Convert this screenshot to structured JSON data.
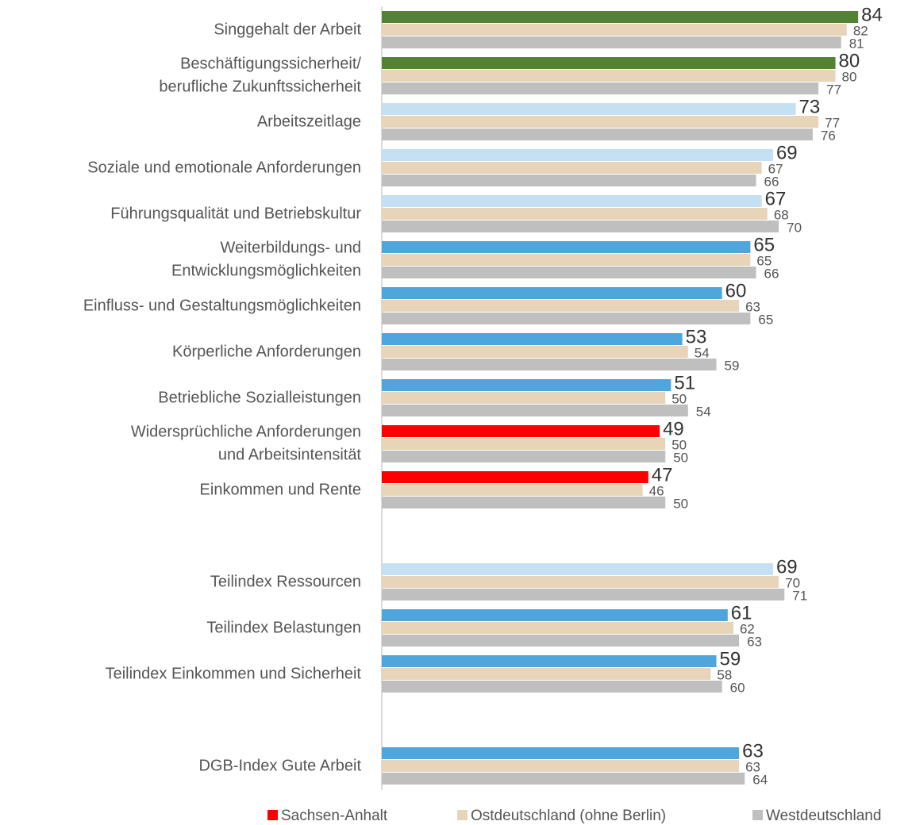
{
  "chart_data": {
    "type": "hbar",
    "categories": [
      "Singgehalt der Arbeit",
      "Beschäftigungssicherheit/\nberufliche Zukunftssicherheit",
      "Arbeitszeitlage",
      "Soziale und emotionale Anforderungen",
      "Führungsqualität und Betriebskultur",
      "Weiterbildungs- und\nEntwicklungsmöglichkeiten",
      "Einfluss- und Gestaltungsmöglichkeiten",
      "Körperliche Anforderungen",
      "Betriebliche Sozialleistungen",
      "Widersprüchliche Anforderungen\nund Arbeitsintensität",
      "Einkommen und Rente",
      null,
      "Teilindex Ressourcen",
      "Teilindex Belastungen",
      "Teilindex Einkommen und Sicherheit",
      null,
      "DGB-Index Gute Arbeit"
    ],
    "series": [
      {
        "name": "Sachsen-Anhalt",
        "color": "#ff0000",
        "colors": [
          "#548235",
          "#548235",
          "#c5e0f3",
          "#c5e0f3",
          "#c5e0f3",
          "#4ea6dc",
          "#4ea6dc",
          "#4ea6dc",
          "#4ea6dc",
          "#ff0000",
          "#ff0000",
          null,
          "#c5e0f3",
          "#4ea6dc",
          "#4ea6dc",
          null,
          "#4ea6dc"
        ],
        "values": [
          84,
          80,
          73,
          69,
          67,
          65,
          60,
          53,
          51,
          49,
          47,
          null,
          69,
          61,
          59,
          null,
          63
        ]
      },
      {
        "name": "Ostdeutschland (ohne Berlin)",
        "color": "#e8d5b9",
        "values": [
          82,
          80,
          77,
          67,
          68,
          65,
          63,
          54,
          50,
          50,
          46,
          null,
          70,
          62,
          58,
          null,
          63
        ]
      },
      {
        "name": "Westdeutschland",
        "color": "#bfbfbf",
        "values": [
          81,
          77,
          76,
          66,
          70,
          66,
          65,
          59,
          54,
          50,
          50,
          null,
          71,
          63,
          60,
          null,
          64
        ]
      }
    ],
    "xlim": [
      0,
      90
    ]
  }
}
